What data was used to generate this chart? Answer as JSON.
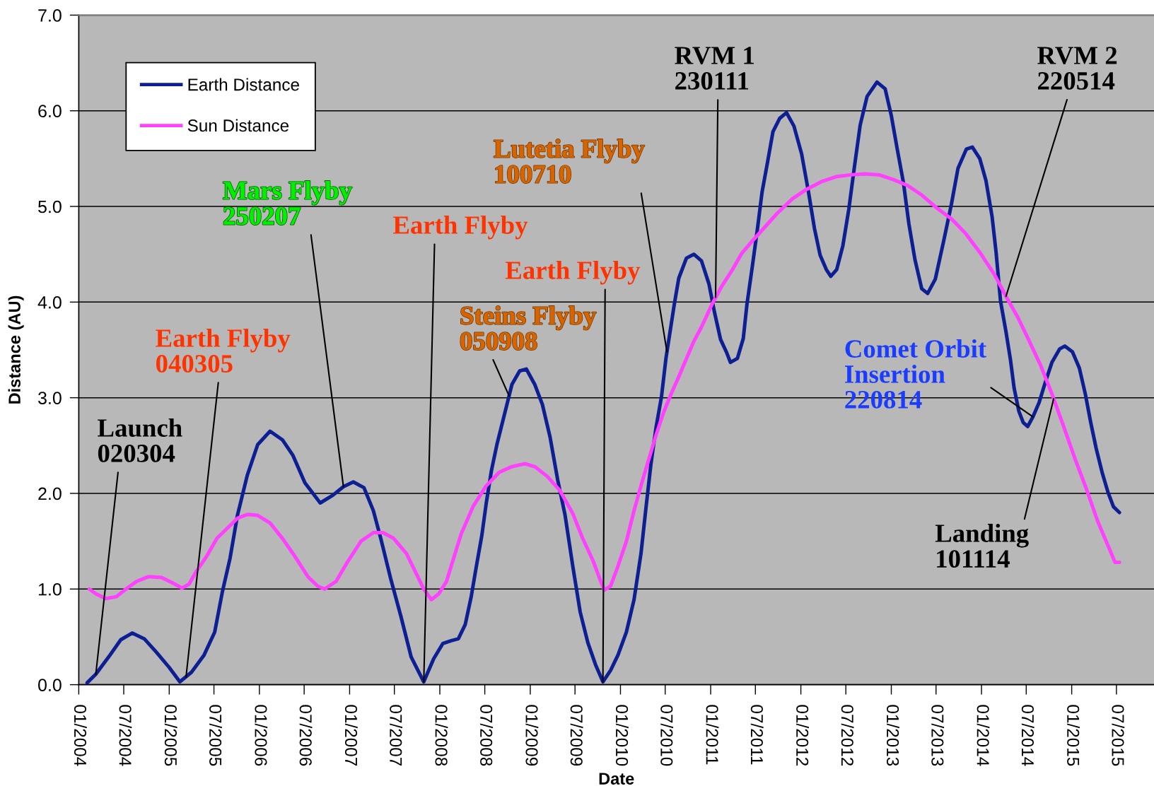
{
  "chart_data": {
    "type": "line",
    "xlabel": "Date",
    "ylabel": "Distance (AU)",
    "xlim": [
      "2004-01-01",
      "2015-11-30"
    ],
    "ylim": [
      0,
      7
    ],
    "xticks": [
      {
        "value": "2004-01-01",
        "label": "01/2004"
      },
      {
        "value": "2004-07-01",
        "label": "07/2004"
      },
      {
        "value": "2005-01-01",
        "label": "01/2005"
      },
      {
        "value": "2005-07-01",
        "label": "07/2005"
      },
      {
        "value": "2006-01-01",
        "label": "01/2006"
      },
      {
        "value": "2006-07-01",
        "label": "07/2006"
      },
      {
        "value": "2007-01-01",
        "label": "01/2007"
      },
      {
        "value": "2007-07-01",
        "label": "07/2007"
      },
      {
        "value": "2008-01-01",
        "label": "01/2008"
      },
      {
        "value": "2008-07-01",
        "label": "07/2008"
      },
      {
        "value": "2009-01-01",
        "label": "01/2009"
      },
      {
        "value": "2009-07-01",
        "label": "07/2009"
      },
      {
        "value": "2010-01-01",
        "label": "01/2010"
      },
      {
        "value": "2010-07-01",
        "label": "07/2010"
      },
      {
        "value": "2011-01-01",
        "label": "01/2011"
      },
      {
        "value": "2011-07-01",
        "label": "07/2011"
      },
      {
        "value": "2012-01-01",
        "label": "01/2012"
      },
      {
        "value": "2012-07-01",
        "label": "07/2012"
      },
      {
        "value": "2013-01-01",
        "label": "01/2013"
      },
      {
        "value": "2013-07-01",
        "label": "07/2013"
      },
      {
        "value": "2014-01-01",
        "label": "01/2014"
      },
      {
        "value": "2014-07-01",
        "label": "07/2014"
      },
      {
        "value": "2015-01-01",
        "label": "01/2015"
      },
      {
        "value": "2015-07-01",
        "label": "07/2015"
      }
    ],
    "yticks": [
      {
        "value": 0,
        "label": "0.0"
      },
      {
        "value": 1,
        "label": "1.0"
      },
      {
        "value": 2,
        "label": "2.0"
      },
      {
        "value": 3,
        "label": "3.0"
      },
      {
        "value": 4,
        "label": "4.0"
      },
      {
        "value": 5,
        "label": "5.0"
      },
      {
        "value": 6,
        "label": "6.0"
      },
      {
        "value": 7,
        "label": "7.0"
      }
    ],
    "grid": "y",
    "legend": "top left",
    "series": [
      {
        "name": "Earth Distance",
        "color": "#0d1f93",
        "x": [
          "2004-02-04",
          "2004-03-10",
          "2004-05-01",
          "2004-06-19",
          "2004-08-04",
          "2004-09-22",
          "2004-11-10",
          "2005-01-01",
          "2005-02-13",
          "2005-04-01",
          "2005-05-22",
          "2005-07-04",
          "2005-08-04",
          "2005-09-04",
          "2005-10-04",
          "2005-11-13",
          "2005-12-25",
          "2006-02-13",
          "2006-04-04",
          "2006-05-16",
          "2006-07-04",
          "2006-09-04",
          "2006-10-25",
          "2006-12-07",
          "2007-01-16",
          "2007-02-28",
          "2007-04-07",
          "2007-05-07",
          "2007-06-16",
          "2007-07-28",
          "2007-09-07",
          "2007-10-28",
          "2007-12-07",
          "2008-01-13",
          "2008-02-16",
          "2008-03-16",
          "2008-04-13",
          "2008-05-07",
          "2008-05-28",
          "2008-06-19",
          "2008-07-07",
          "2008-07-28",
          "2008-08-19",
          "2008-09-19",
          "2008-10-19",
          "2008-11-19",
          "2008-12-16",
          "2009-01-19",
          "2009-02-19",
          "2009-03-22",
          "2009-04-22",
          "2009-05-22",
          "2009-06-22",
          "2009-07-22",
          "2009-08-22",
          "2009-09-22",
          "2009-10-22",
          "2009-11-22",
          "2009-12-22",
          "2010-01-25",
          "2010-02-25",
          "2010-03-25",
          "2010-04-13",
          "2010-05-04",
          "2010-05-25",
          "2010-06-16",
          "2010-07-04",
          "2010-08-07",
          "2010-08-25",
          "2010-09-25",
          "2010-10-25",
          "2010-11-25",
          "2010-12-25",
          "2011-01-16",
          "2011-02-10",
          "2011-03-07",
          "2011-03-22",
          "2011-04-19",
          "2011-05-13",
          "2011-05-28",
          "2011-06-19",
          "2011-07-10",
          "2011-07-28",
          "2011-08-19",
          "2011-09-10",
          "2011-10-07",
          "2011-11-04",
          "2011-12-04",
          "2012-01-04",
          "2012-02-01",
          "2012-02-25",
          "2012-03-19",
          "2012-04-13",
          "2012-05-01",
          "2012-05-25",
          "2012-06-19",
          "2012-07-13",
          "2012-08-04",
          "2012-08-28",
          "2012-09-25",
          "2012-11-04",
          "2012-12-07",
          "2013-01-01",
          "2013-01-25",
          "2013-02-19",
          "2013-03-13",
          "2013-04-07",
          "2013-05-04",
          "2013-05-28",
          "2013-06-28",
          "2013-08-01",
          "2013-09-01",
          "2013-09-28",
          "2013-11-01",
          "2013-11-25",
          "2013-12-25",
          "2014-01-19",
          "2014-02-13",
          "2014-03-01",
          "2014-03-19",
          "2014-04-10",
          "2014-04-28",
          "2014-05-13",
          "2014-06-01",
          "2014-06-19",
          "2014-07-07",
          "2014-07-28",
          "2014-08-22",
          "2014-09-16",
          "2014-10-13",
          "2014-11-13",
          "2014-12-04",
          "2015-01-04",
          "2015-02-01",
          "2015-02-25",
          "2015-03-19",
          "2015-04-10",
          "2015-05-04",
          "2015-05-28",
          "2015-06-19",
          "2015-07-13"
        ],
        "values": [
          0.02,
          0.11,
          0.29,
          0.47,
          0.54,
          0.48,
          0.34,
          0.18,
          0.03,
          0.13,
          0.31,
          0.55,
          0.97,
          1.32,
          1.77,
          2.19,
          2.51,
          2.65,
          2.56,
          2.4,
          2.11,
          1.9,
          1.98,
          2.07,
          2.12,
          2.06,
          1.82,
          1.53,
          1.11,
          0.71,
          0.29,
          0.03,
          0.27,
          0.43,
          0.46,
          0.48,
          0.63,
          0.92,
          1.24,
          1.56,
          1.9,
          2.24,
          2.51,
          2.83,
          3.14,
          3.28,
          3.3,
          3.14,
          2.93,
          2.59,
          2.14,
          1.77,
          1.24,
          0.76,
          0.44,
          0.21,
          0.03,
          0.15,
          0.31,
          0.55,
          0.89,
          1.37,
          1.82,
          2.3,
          2.69,
          3.01,
          3.41,
          3.98,
          4.25,
          4.46,
          4.5,
          4.43,
          4.19,
          3.9,
          3.61,
          3.47,
          3.37,
          3.41,
          3.62,
          3.98,
          4.38,
          4.78,
          5.15,
          5.46,
          5.78,
          5.92,
          5.98,
          5.84,
          5.55,
          5.15,
          4.77,
          4.49,
          4.34,
          4.27,
          4.34,
          4.59,
          4.97,
          5.4,
          5.85,
          6.15,
          6.3,
          6.23,
          5.95,
          5.6,
          5.25,
          4.82,
          4.44,
          4.14,
          4.09,
          4.24,
          4.64,
          5.02,
          5.4,
          5.6,
          5.62,
          5.5,
          5.27,
          4.89,
          4.52,
          4.01,
          3.69,
          3.4,
          3.1,
          2.86,
          2.74,
          2.7,
          2.8,
          2.95,
          3.16,
          3.37,
          3.51,
          3.54,
          3.48,
          3.31,
          3.04,
          2.74,
          2.47,
          2.22,
          2.01,
          1.86,
          1.8
        ]
      },
      {
        "name": "Sun Distance",
        "color": "#ff40ff",
        "x": [
          "2004-02-13",
          "2004-03-10",
          "2004-04-19",
          "2004-06-01",
          "2004-07-10",
          "2004-08-22",
          "2004-10-10",
          "2004-12-01",
          "2005-01-10",
          "2005-02-22",
          "2005-03-22",
          "2005-04-22",
          "2005-06-01",
          "2005-07-13",
          "2005-08-22",
          "2005-10-04",
          "2005-11-13",
          "2005-12-25",
          "2006-02-13",
          "2006-04-04",
          "2006-05-25",
          "2006-07-16",
          "2006-08-25",
          "2006-09-22",
          "2006-11-07",
          "2006-12-25",
          "2007-02-16",
          "2007-04-07",
          "2007-05-16",
          "2007-06-28",
          "2007-08-19",
          "2007-09-28",
          "2007-10-28",
          "2007-11-28",
          "2007-12-28",
          "2008-01-28",
          "2008-02-22",
          "2008-03-28",
          "2008-05-16",
          "2008-07-07",
          "2008-08-28",
          "2008-10-19",
          "2008-12-10",
          "2009-01-19",
          "2009-03-10",
          "2009-05-01",
          "2009-06-22",
          "2009-08-01",
          "2009-09-13",
          "2009-10-13",
          "2009-10-28",
          "2009-11-22",
          "2009-12-22",
          "2010-01-25",
          "2010-02-25",
          "2010-03-25",
          "2010-04-25",
          "2010-05-25",
          "2010-06-25",
          "2010-07-25",
          "2010-08-25",
          "2010-09-25",
          "2010-10-25",
          "2010-11-25",
          "2011-01-07",
          "2011-02-16",
          "2011-03-28",
          "2011-05-07",
          "2011-06-19",
          "2011-08-07",
          "2011-09-28",
          "2011-11-28",
          "2012-01-25",
          "2012-03-25",
          "2012-05-22",
          "2012-07-19",
          "2012-09-16",
          "2012-11-13",
          "2013-01-10",
          "2013-03-07",
          "2013-05-04",
          "2013-07-01",
          "2013-09-01",
          "2013-10-28",
          "2013-12-25",
          "2014-02-22",
          "2014-04-10",
          "2014-05-28",
          "2014-07-10",
          "2014-08-28",
          "2014-10-13",
          "2014-11-28",
          "2015-01-16",
          "2015-03-01",
          "2015-04-16",
          "2015-06-04",
          "2015-06-25",
          "2015-07-13"
        ],
        "values": [
          1.0,
          0.95,
          0.9,
          0.92,
          1.0,
          1.08,
          1.13,
          1.12,
          1.07,
          1.01,
          1.05,
          1.19,
          1.34,
          1.53,
          1.63,
          1.74,
          1.78,
          1.77,
          1.69,
          1.53,
          1.34,
          1.13,
          1.03,
          1.0,
          1.08,
          1.29,
          1.5,
          1.59,
          1.59,
          1.53,
          1.37,
          1.16,
          1.0,
          0.89,
          0.95,
          1.08,
          1.29,
          1.58,
          1.87,
          2.08,
          2.22,
          2.28,
          2.31,
          2.28,
          2.18,
          2.03,
          1.79,
          1.53,
          1.29,
          1.08,
          0.99,
          1.03,
          1.24,
          1.5,
          1.82,
          2.08,
          2.35,
          2.61,
          2.85,
          3.04,
          3.22,
          3.41,
          3.59,
          3.74,
          3.98,
          4.17,
          4.33,
          4.51,
          4.64,
          4.78,
          4.93,
          5.08,
          5.18,
          5.26,
          5.31,
          5.33,
          5.34,
          5.33,
          5.28,
          5.22,
          5.12,
          4.99,
          4.87,
          4.72,
          4.52,
          4.29,
          4.06,
          3.84,
          3.61,
          3.34,
          3.04,
          2.71,
          2.35,
          2.05,
          1.71,
          1.41,
          1.28,
          1.28
        ]
      }
    ],
    "annotations": [
      {
        "text": "Launch\n020304",
        "x": "2004-03-10",
        "y": 0.11
      },
      {
        "text": "Earth Flyby\n040305",
        "x": "2005-03-10",
        "y": 0.08
      },
      {
        "text": "Mars Flyby\n250207",
        "x": "2006-12-07",
        "y": 2.07
      },
      {
        "text": "Earth Flyby",
        "x": "2007-10-28",
        "y": 0.03
      },
      {
        "text": "Steins Flyby\n050908",
        "x": "2008-10-07",
        "y": 3.02
      },
      {
        "text": "Earth Flyby",
        "x": "2009-10-22",
        "y": 0.03
      },
      {
        "text": "Lutetia Flyby\n100710",
        "x": "2010-07-08",
        "y": 3.48
      },
      {
        "text": "RVM 1\n230111",
        "x": "2011-01-21",
        "y": 4.05
      },
      {
        "text": "RVM 2\n220514",
        "x": "2014-04-10",
        "y": 4.06
      },
      {
        "text": "Comet Orbit\nInsertion\n220814",
        "x": "2014-07-28",
        "y": 2.8
      },
      {
        "text": "Landing\n101114",
        "x": "2014-10-20",
        "y": 2.99
      }
    ]
  }
}
